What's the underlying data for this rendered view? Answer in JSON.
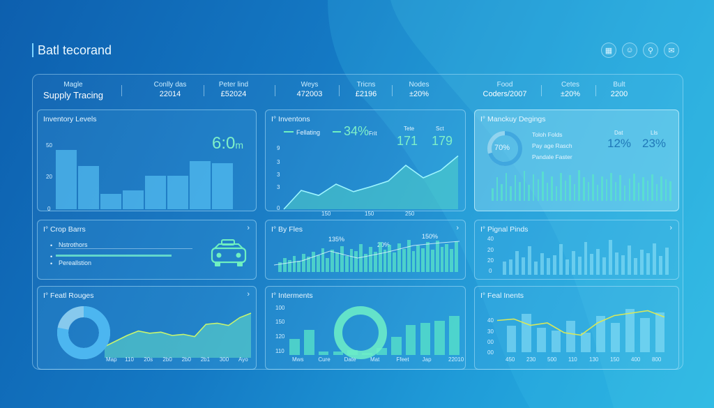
{
  "app_title": "Batl tecorand",
  "icons": [
    "grid-icon",
    "user-icon",
    "link-icon",
    "mail-icon"
  ],
  "stats": [
    {
      "label": "Magle",
      "value": "Supply Tracing"
    },
    {
      "label": "Conlly das",
      "value": "22014"
    },
    {
      "label": "Peter lind",
      "value": "£52024"
    },
    {
      "label": "Weys",
      "value": "472003"
    },
    {
      "label": "Tricns",
      "value": "£2196"
    },
    {
      "label": "Nodes",
      "value": "±20%"
    },
    {
      "label": "Food",
      "value": "Coders/2007"
    },
    {
      "label": "Cetes",
      "value": "±20%"
    },
    {
      "label": "Bult",
      "value": "2200"
    }
  ],
  "panels": {
    "inventory_levels": {
      "title": "Inventory Levels",
      "readout": "6:0",
      "readout_unit": "m",
      "y_ticks": [
        "50",
        "20",
        "0"
      ],
      "chart_data": {
        "type": "bar",
        "values": [
          62,
          45,
          16,
          20,
          35,
          35,
          50,
          48
        ],
        "ylim": [
          0,
          80
        ]
      }
    },
    "inventons": {
      "title": "Inventons",
      "legend_label": "Fellating",
      "legend_value": "34%",
      "legend_value_suffix": "Frit",
      "col1_label": "Tete",
      "col1_value": "171",
      "col2_label": "Sct",
      "col2_value": "179",
      "y_ticks": [
        "9",
        "3",
        "3",
        "3",
        "0"
      ],
      "x_ticks": [
        "150",
        "150",
        "250"
      ],
      "chart_data": {
        "type": "area",
        "values": [
          0,
          30,
          22,
          40,
          28,
          36,
          45,
          70,
          50,
          62,
          85
        ],
        "ylim": [
          0,
          100
        ]
      }
    },
    "mancky_degings": {
      "title": "Manckuy Degings",
      "donut_value": "70%",
      "donut_fraction": 0.7,
      "lines": [
        "Toloh Folds",
        "Pay age Rasch",
        "Pandale Faster"
      ],
      "col1_label": "Dat",
      "col1_value": "12%",
      "col2_label": "Lls",
      "col2_value": "23%",
      "chart_data": {
        "type": "bar",
        "values": [
          30,
          55,
          40,
          65,
          35,
          60,
          45,
          70,
          38,
          62,
          50,
          68,
          42,
          58,
          35,
          66,
          48,
          60,
          40,
          72,
          55,
          45,
          63,
          38,
          58,
          50,
          66,
          44,
          60,
          36,
          52,
          64,
          42,
          56,
          48,
          62,
          40,
          58,
          50,
          46
        ]
      }
    },
    "crop_bars": {
      "title": "Crop Barrs",
      "rows": [
        "Nstrothors",
        "Pereallstion"
      ],
      "icon": "taxi-icon"
    },
    "by_fles": {
      "title": "By Fles",
      "annotations": [
        "135%",
        "20%",
        "150%"
      ],
      "chart_data": {
        "type": "bar",
        "values": [
          25,
          35,
          30,
          40,
          28,
          45,
          38,
          50,
          42,
          60,
          35,
          55,
          48,
          65,
          40,
          58,
          52,
          70,
          45,
          62,
          50,
          75,
          55,
          68,
          48,
          72,
          58,
          80,
          52,
          66,
          60,
          74,
          56,
          78,
          62,
          70,
          58,
          76
        ]
      }
    },
    "pignal_pinds": {
      "title": "Pignal Pinds",
      "y_ticks": [
        "40",
        "20",
        "20",
        "0"
      ],
      "chart_data": {
        "type": "bar",
        "values": [
          30,
          35,
          55,
          40,
          65,
          30,
          50,
          38,
          45,
          70,
          35,
          55,
          42,
          75,
          48,
          60,
          40,
          80,
          52,
          45,
          68,
          38,
          58,
          50,
          72,
          44,
          62
        ]
      }
    },
    "featl_rouges": {
      "title": "Featl Rouges",
      "x_ticks": [
        "Map",
        "110",
        "20s",
        "2b0",
        "2b0",
        "2b1",
        "300",
        "Ayo"
      ],
      "donut_fraction": 0.78,
      "chart_data": {
        "type": "area",
        "values": [
          20,
          30,
          40,
          48,
          44,
          46,
          40,
          42,
          38,
          60,
          62,
          58,
          72,
          80
        ],
        "ylim": [
          0,
          100
        ]
      }
    },
    "interments": {
      "title": "Interments",
      "y_ticks": [
        "100",
        "150",
        "120",
        "110"
      ],
      "x_ticks": [
        "Mws",
        "Cure",
        "Date",
        "Mat",
        "Ffeet",
        "Jap",
        "22010"
      ],
      "chart_data": {
        "type": "bar",
        "values": [
          35,
          55,
          8,
          8,
          10,
          5,
          15,
          40,
          65,
          70,
          75,
          85
        ],
        "ylim": [
          0,
          100
        ]
      }
    },
    "feal_inents": {
      "title": "Feal Inents",
      "y_ticks": [
        "40",
        "30",
        "00",
        "00"
      ],
      "x_ticks": [
        "450",
        "230",
        "500",
        "110",
        "130",
        "150",
        "400",
        "800"
      ],
      "chart_data": {
        "type": "bar",
        "values": [
          55,
          78,
          50,
          45,
          65,
          40,
          75,
          60,
          88,
          70,
          82
        ],
        "line": [
          65,
          68,
          55,
          60,
          40,
          35,
          60,
          75,
          80,
          85,
          72
        ],
        "ylim": [
          0,
          100
        ]
      }
    }
  }
}
